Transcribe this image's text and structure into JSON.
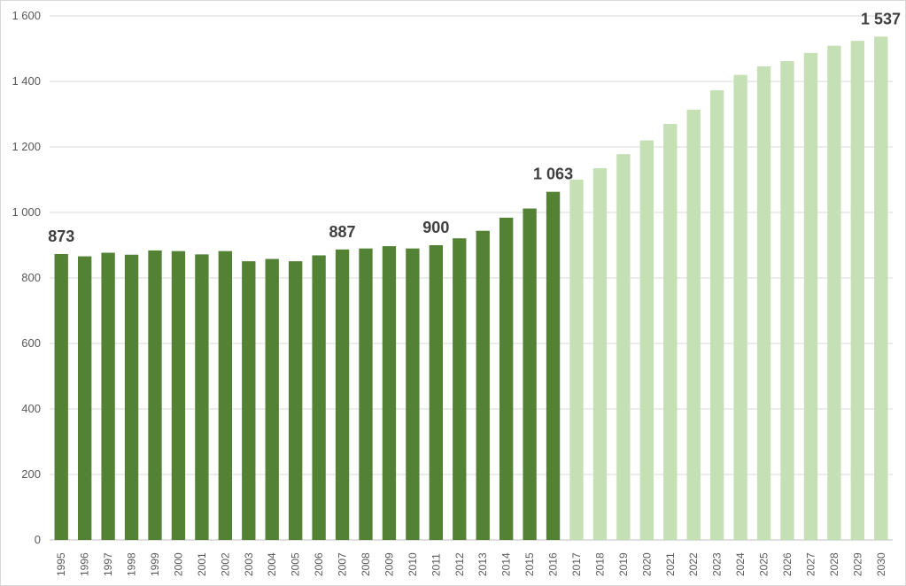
{
  "chart_data": {
    "type": "bar",
    "title": "",
    "xlabel": "",
    "ylabel": "",
    "ylim": [
      0,
      1600
    ],
    "yticks": [
      0,
      200,
      400,
      600,
      800,
      1000,
      1200,
      1400,
      1600
    ],
    "ytick_labels": [
      "0",
      "200",
      "400",
      "600",
      "800",
      "1 000",
      "1 200",
      "1 400",
      "1 600"
    ],
    "grid": true,
    "legend": "none",
    "categories": [
      "1995",
      "1996",
      "1997",
      "1998",
      "1999",
      "2000",
      "2001",
      "2002",
      "2003",
      "2004",
      "2005",
      "2006",
      "2007",
      "2008",
      "2009",
      "2010",
      "2011",
      "2012",
      "2013",
      "2014",
      "2015",
      "2016",
      "2017",
      "2018",
      "2019",
      "2020",
      "2021",
      "2022",
      "2023",
      "2024",
      "2025",
      "2026",
      "2027",
      "2028",
      "2029",
      "2030"
    ],
    "values": [
      873,
      866,
      877,
      871,
      884,
      882,
      872,
      882,
      851,
      858,
      851,
      869,
      887,
      890,
      897,
      890,
      900,
      921,
      944,
      984,
      1012,
      1063,
      1100,
      1135,
      1178,
      1220,
      1270,
      1314,
      1373,
      1420,
      1446,
      1462,
      1487,
      1509,
      1524,
      1537
    ],
    "colors": [
      "#548235",
      "#548235",
      "#548235",
      "#548235",
      "#548235",
      "#548235",
      "#548235",
      "#548235",
      "#548235",
      "#548235",
      "#548235",
      "#548235",
      "#548235",
      "#548235",
      "#548235",
      "#548235",
      "#548235",
      "#548235",
      "#548235",
      "#548235",
      "#548235",
      "#548235",
      "#c5e0b4",
      "#c5e0b4",
      "#c5e0b4",
      "#c5e0b4",
      "#c5e0b4",
      "#c5e0b4",
      "#c5e0b4",
      "#c5e0b4",
      "#c5e0b4",
      "#c5e0b4",
      "#c5e0b4",
      "#c5e0b4",
      "#c5e0b4",
      "#c5e0b4"
    ],
    "data_labels": [
      {
        "category": "1995",
        "text": "873"
      },
      {
        "category": "2007",
        "text": "887"
      },
      {
        "category": "2011",
        "text": "900"
      },
      {
        "category": "2016",
        "text": "1 063"
      },
      {
        "category": "2030",
        "text": "1 537"
      }
    ]
  }
}
